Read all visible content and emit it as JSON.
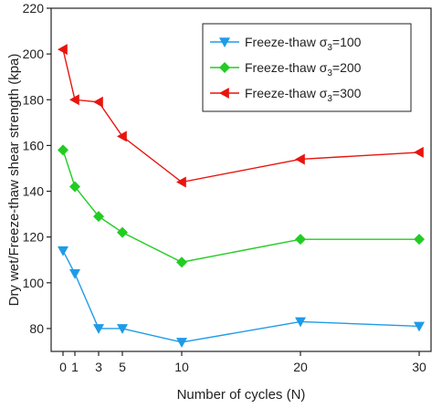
{
  "chart_data": {
    "type": "line",
    "title": "",
    "xlabel": "Number of cycles (N)",
    "ylabel": "Dry wet/Freeze-thaw shear strength (kpa)",
    "xlim": [
      -1,
      31
    ],
    "ylim": [
      70,
      220
    ],
    "x_ticks": [
      0,
      1,
      3,
      5,
      10,
      20,
      30
    ],
    "y_ticks": [
      80,
      100,
      120,
      140,
      160,
      180,
      200,
      220
    ],
    "grid": false,
    "legend_position": "top-right",
    "series": [
      {
        "name_prefix": "Freeze-thaw σ",
        "name_sub": "3",
        "name_suffix": "=100",
        "color": "#1e9be8",
        "marker": "triangle-down",
        "x": [
          0,
          1,
          3,
          5,
          10,
          20,
          30
        ],
        "y": [
          114,
          104,
          80,
          80,
          74,
          83,
          81
        ]
      },
      {
        "name_prefix": "Freeze-thaw σ",
        "name_sub": "3",
        "name_suffix": "=200",
        "color": "#22cc22",
        "marker": "diamond",
        "x": [
          0,
          1,
          3,
          5,
          10,
          20,
          30
        ],
        "y": [
          158,
          142,
          129,
          122,
          109,
          119,
          119
        ]
      },
      {
        "name_prefix": "Freeze-thaw σ",
        "name_sub": "3",
        "name_suffix": "=300",
        "color": "#e8140e",
        "marker": "triangle-left",
        "x": [
          0,
          1,
          3,
          5,
          10,
          20,
          30
        ],
        "y": [
          202,
          180,
          179,
          164,
          144,
          154,
          157
        ]
      }
    ]
  }
}
